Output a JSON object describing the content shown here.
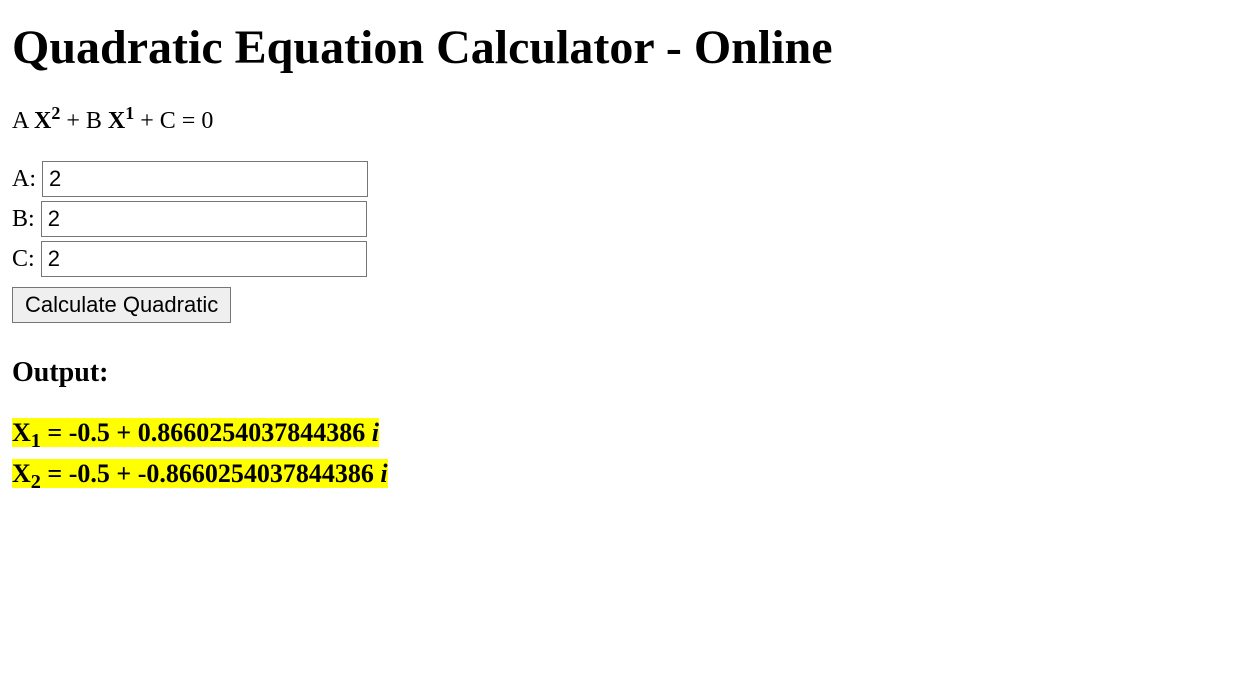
{
  "page": {
    "title": "Quadratic Equation Calculator - Online"
  },
  "equation": {
    "coef_a": "A ",
    "var1": "X",
    "exp1": "2",
    "mid1": " + B ",
    "var2": "X",
    "exp2": "1",
    "tail": " + C = 0"
  },
  "inputs": {
    "a": {
      "label": "A: ",
      "value": "2"
    },
    "b": {
      "label": "B: ",
      "value": "2"
    },
    "c": {
      "label": "C: ",
      "value": "2"
    }
  },
  "button": {
    "label": "Calculate Quadratic"
  },
  "output": {
    "heading": "Output:",
    "results": [
      {
        "x_label": "X",
        "sub": "1",
        "expr": " = -0.5 + 0.8660254037844386 ",
        "imag": "i"
      },
      {
        "x_label": "X",
        "sub": "2",
        "expr": " = -0.5 + -0.8660254037844386 ",
        "imag": "i"
      }
    ]
  },
  "colors": {
    "highlight": "#ffff00",
    "background": "#ffffff",
    "text": "#000000"
  }
}
